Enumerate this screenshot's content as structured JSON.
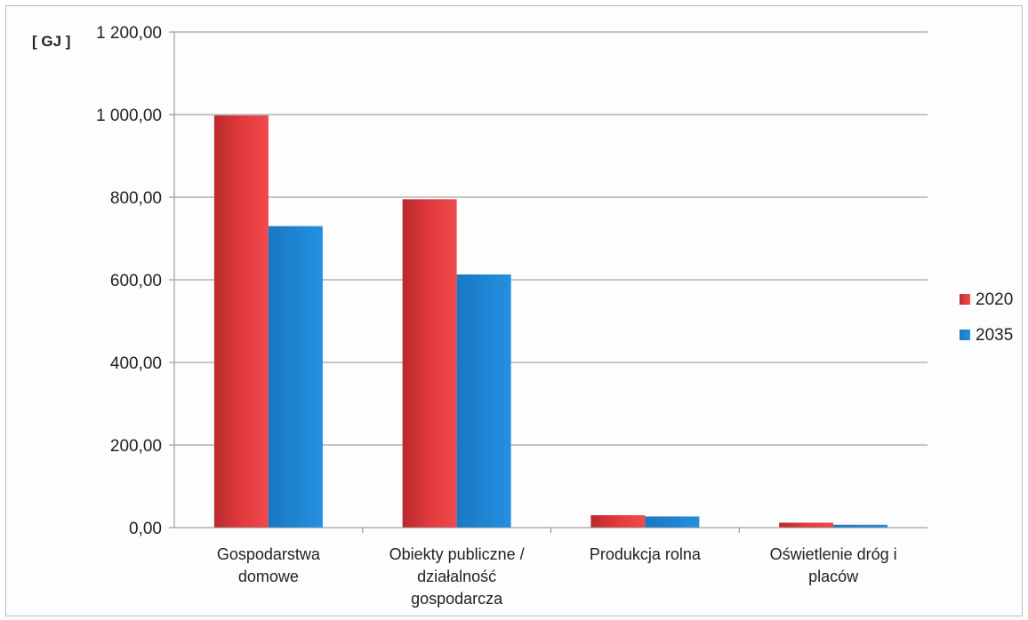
{
  "chart_data": {
    "type": "bar",
    "unit_label": "[ GJ ]",
    "categories": [
      [
        "Gospodarstwa",
        "domowe"
      ],
      [
        "Obiekty publiczne /",
        "działalność",
        "gospodarcza"
      ],
      [
        "Produkcja rolna"
      ],
      [
        "Oświetlenie dróg i",
        "placów"
      ]
    ],
    "series": [
      {
        "name": "2020",
        "values": [
          998,
          795,
          30,
          12
        ],
        "color": "#e8393c"
      },
      {
        "name": "2035",
        "values": [
          730,
          613,
          27,
          7
        ],
        "color": "#1f86d4"
      }
    ],
    "ylim": [
      0,
      1200
    ],
    "yticks": [
      0,
      200,
      400,
      600,
      800,
      1000,
      1200
    ],
    "ytick_labels": [
      "0,00",
      "200,00",
      "400,00",
      "600,00",
      "800,00",
      "1 000,00",
      "1 200,00"
    ],
    "grid": true,
    "legend_position": "right"
  }
}
